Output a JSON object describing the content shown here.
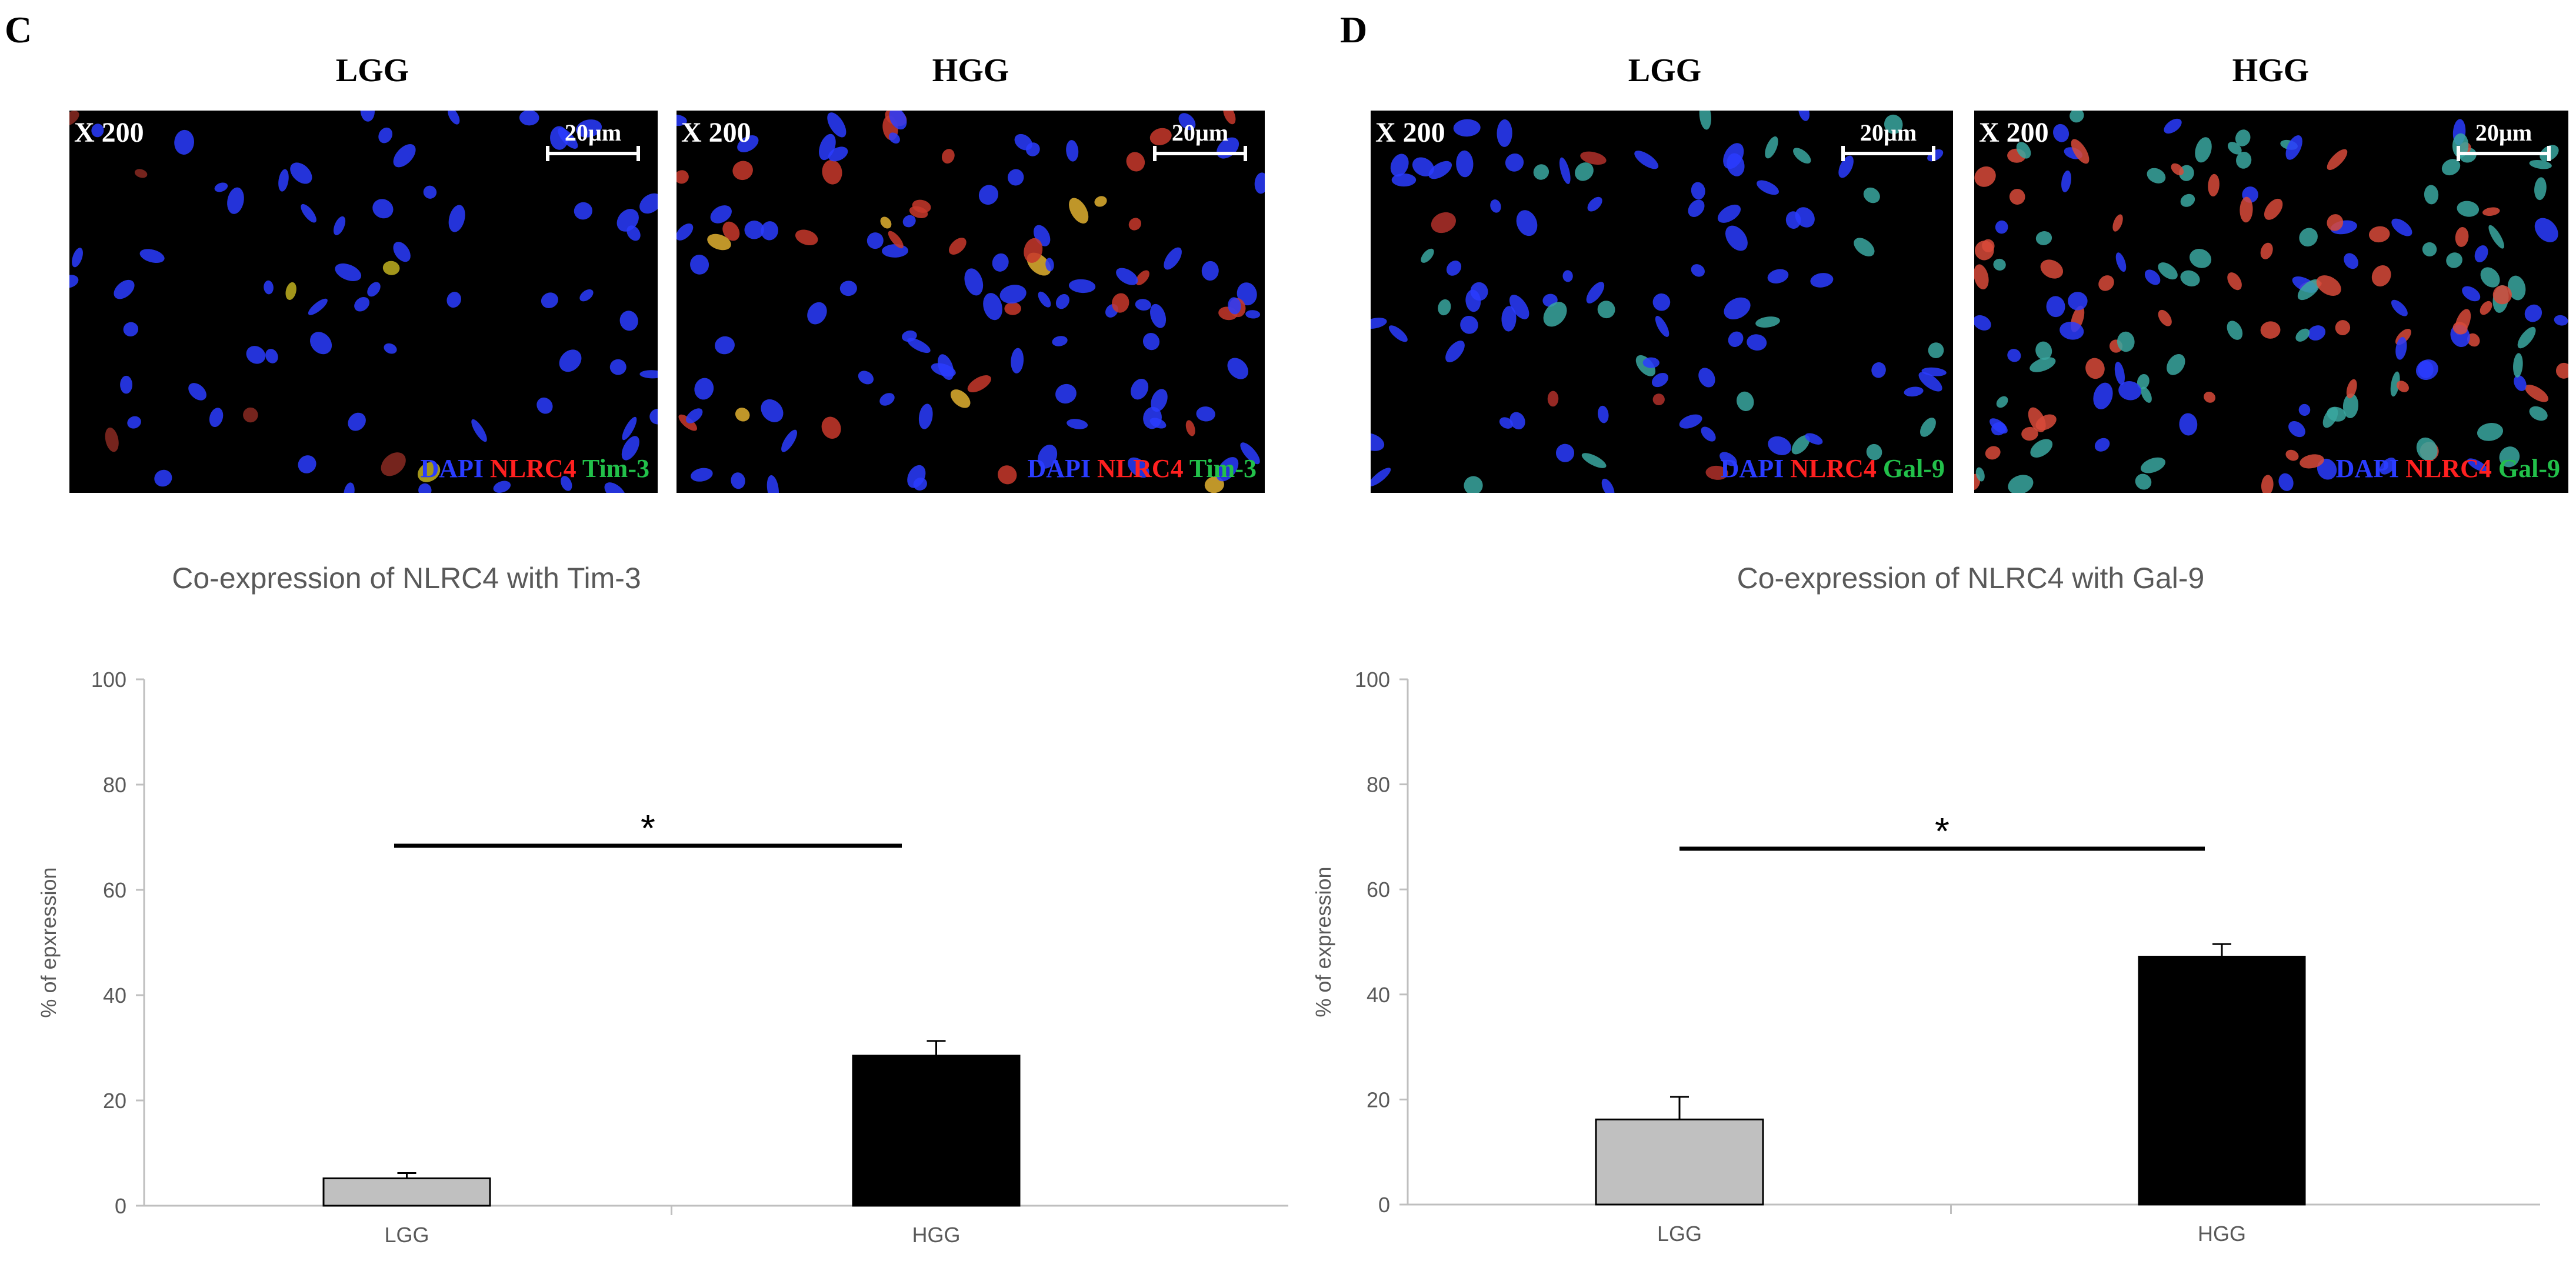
{
  "panels": [
    {
      "letter": "C",
      "image_labels": [
        "LGG",
        "HGG"
      ],
      "magnification": "X 200",
      "scale": "20µm",
      "stain": {
        "dapi": "DAPI",
        "nlrc": "NLRC4",
        "marker": "Tim-3"
      }
    },
    {
      "letter": "D",
      "image_labels": [
        "LGG",
        "HGG"
      ],
      "magnification": "X 200",
      "scale": "20µm",
      "stain": {
        "dapi": "DAPI",
        "nlrc": "NLRC4",
        "marker": "Gal-9"
      }
    }
  ],
  "colors": {
    "lgg_bar": "#c0c0c0",
    "hgg_bar": "#000000",
    "dapi": "#2a3cff",
    "nlrc4": "#ff2020",
    "marker": "#22c04a"
  },
  "chart_data": [
    {
      "type": "bar",
      "title": "Co-expression of NLRC4 with Tim-3",
      "categories": [
        "LGG",
        "HGG"
      ],
      "values": [
        5.2,
        28.5
      ],
      "errors": [
        1.0,
        2.8
      ],
      "ylabel": "% of epxression",
      "xlabel": "",
      "ylim": [
        0,
        100
      ],
      "yticks": [
        "0",
        "20",
        "40",
        "60",
        "80",
        "100"
      ],
      "significance": "*",
      "grid": false
    },
    {
      "type": "bar",
      "title": "Co-expression of NLRC4 with Gal-9",
      "categories": [
        "LGG",
        "HGG"
      ],
      "values": [
        16.2,
        47.2
      ],
      "errors": [
        4.3,
        2.4
      ],
      "ylabel": "% of expression",
      "xlabel": "",
      "ylim": [
        0,
        100
      ],
      "yticks": [
        "0",
        "20",
        "40",
        "60",
        "80",
        "100"
      ],
      "significance": "*",
      "grid": false
    }
  ]
}
